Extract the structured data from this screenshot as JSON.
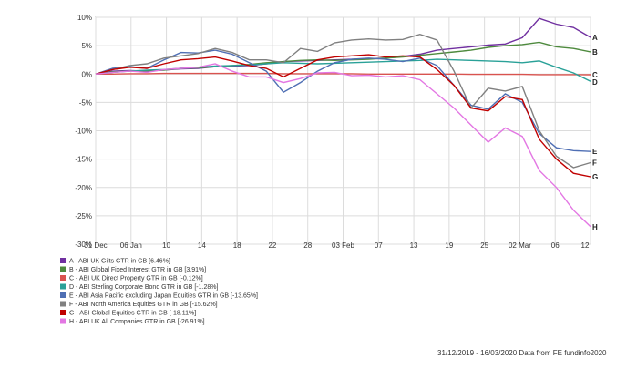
{
  "chart_data": {
    "type": "line",
    "title": "",
    "xlabel": "",
    "ylabel": "",
    "ylim": [
      -30,
      10
    ],
    "yticks": [
      10,
      5,
      0,
      -5,
      -10,
      -15,
      -20,
      -25,
      -30
    ],
    "ytick_labels": [
      "10%",
      "5%",
      "0%",
      "-5%",
      "-10%",
      "-15%",
      "-20%",
      "-25%",
      "-30%"
    ],
    "xtick_labels": [
      "31 Dec",
      "06 Jan",
      "10",
      "14",
      "18",
      "22",
      "28",
      "03 Feb",
      "07",
      "13",
      "19",
      "25",
      "02 Mar",
      "06",
      "12"
    ],
    "x": [
      "31 Dec",
      "03 Jan",
      "06 Jan",
      "08 Jan",
      "10 Jan",
      "14 Jan",
      "16 Jan",
      "18 Jan",
      "22 Jan",
      "24 Jan",
      "28 Jan",
      "31 Jan",
      "03 Feb",
      "05 Feb",
      "07 Feb",
      "10 Feb",
      "13 Feb",
      "17 Feb",
      "19 Feb",
      "21 Feb",
      "24 Feb",
      "25 Feb",
      "27 Feb",
      "02 Mar",
      "04 Mar",
      "06 Mar",
      "09 Mar",
      "11 Mar",
      "12 Mar",
      "16 Mar"
    ],
    "grid": true,
    "legend_position": "bottom-left",
    "series": [
      {
        "key": "A",
        "name": "A - ABI UK Gilts GTR in GB [6.46%]",
        "color": "#7030a0",
        "values": [
          0,
          0.5,
          0.6,
          0.5,
          0.7,
          0.9,
          1.0,
          1.3,
          1.4,
          1.5,
          1.8,
          2.2,
          2.3,
          2.4,
          2.5,
          2.6,
          2.7,
          2.8,
          3.1,
          3.5,
          4.2,
          4.5,
          4.8,
          5.1,
          5.3,
          6.4,
          9.8,
          8.8,
          8.2,
          6.46
        ]
      },
      {
        "key": "B",
        "name": "B - ABI Global Fixed Interest GTR in GB [3.91%]",
        "color": "#4e8a3e",
        "values": [
          0,
          0.4,
          0.5,
          0.6,
          0.7,
          1.0,
          1.1,
          1.3,
          1.5,
          1.7,
          2.0,
          2.2,
          2.4,
          2.5,
          2.4,
          2.5,
          2.6,
          2.8,
          3.0,
          3.3,
          3.6,
          3.9,
          4.2,
          4.7,
          5.0,
          5.2,
          5.6,
          4.8,
          4.5,
          3.91
        ]
      },
      {
        "key": "C",
        "name": "C - ABI UK Direct Property GTR in GB [-0.12%]",
        "color": "#d9534f",
        "values": [
          0,
          0.0,
          0.05,
          0.05,
          0.1,
          0.1,
          0.1,
          0.1,
          0.1,
          0.1,
          0.1,
          0.05,
          0.05,
          0.05,
          0.05,
          0.05,
          0.0,
          0.0,
          0.0,
          0.0,
          0.0,
          0.0,
          -0.05,
          -0.05,
          -0.05,
          -0.05,
          -0.1,
          -0.1,
          -0.1,
          -0.12
        ]
      },
      {
        "key": "D",
        "name": "D - ABI Sterling Corporate Bond GTR in GB [-1.28%]",
        "color": "#2aa198",
        "values": [
          0,
          0.3,
          0.5,
          0.7,
          0.8,
          1.0,
          1.2,
          1.4,
          1.5,
          1.6,
          1.8,
          2.0,
          1.9,
          1.8,
          1.9,
          2.0,
          2.1,
          2.2,
          2.3,
          2.4,
          2.6,
          2.5,
          2.4,
          2.3,
          2.2,
          2.0,
          2.3,
          1.2,
          0.2,
          -1.28
        ]
      },
      {
        "key": "E",
        "name": "E - ABI Asia Pacific excluding Japan Equities GTR in GB [-13.65%]",
        "color": "#4f6fb4",
        "values": [
          0,
          1.0,
          1.3,
          1.0,
          2.5,
          3.8,
          3.7,
          4.2,
          3.5,
          2.0,
          0.5,
          -3.2,
          -1.5,
          0.5,
          2.0,
          2.6,
          2.8,
          2.6,
          2.2,
          2.8,
          1.5,
          -2.0,
          -5.5,
          -6.2,
          -3.5,
          -5.0,
          -10.5,
          -13.0,
          -13.5,
          -13.65
        ]
      },
      {
        "key": "F",
        "name": "F - ABI North America Equities GTR in GB [-15.62%]",
        "color": "#808080",
        "values": [
          0,
          0.8,
          1.5,
          1.8,
          2.8,
          3.2,
          3.6,
          4.5,
          3.8,
          2.5,
          2.5,
          2.0,
          4.5,
          4.0,
          5.5,
          6.0,
          6.2,
          6.0,
          6.1,
          7.0,
          6.0,
          0.5,
          -6.0,
          -2.5,
          -3.0,
          -2.2,
          -10.0,
          -14.5,
          -16.5,
          -15.62
        ]
      },
      {
        "key": "G",
        "name": "G - ABI Global Equities GTR in GB [-18.11%]",
        "color": "#c00000",
        "values": [
          0,
          0.8,
          1.2,
          1.0,
          1.8,
          2.5,
          2.7,
          3.0,
          2.3,
          1.5,
          1.0,
          -0.5,
          1.0,
          2.5,
          3.0,
          3.2,
          3.4,
          3.0,
          3.2,
          3.0,
          0.8,
          -2.0,
          -6.0,
          -6.5,
          -4.0,
          -4.5,
          -11.5,
          -15.0,
          -17.5,
          -18.11
        ]
      },
      {
        "key": "H",
        "name": "H - ABI UK All Companies GTR in GB [-26.91%]",
        "color": "#e377e3",
        "values": [
          0,
          0.3,
          0.5,
          0.3,
          0.8,
          1.0,
          1.2,
          1.8,
          0.5,
          -0.5,
          -0.5,
          -1.5,
          -0.8,
          0.2,
          0.3,
          -0.3,
          -0.2,
          -0.5,
          -0.3,
          -1.0,
          -3.5,
          -6.0,
          -9.0,
          -12.0,
          -9.5,
          -11.0,
          -17.0,
          -20.0,
          -24.0,
          -26.91
        ]
      }
    ]
  },
  "footer": {
    "text": "31/12/2019 - 16/03/2020 Data from FE fundinfo2020"
  }
}
